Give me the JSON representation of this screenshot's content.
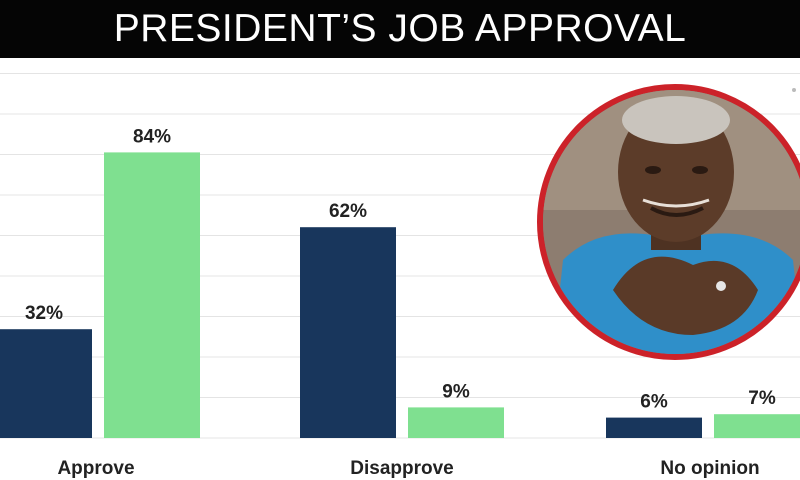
{
  "header": {
    "title": "PRESIDENT’S JOB APPROVAL"
  },
  "colors": {
    "series_dark": "#18365c",
    "series_light": "#7fe090",
    "title_bg": "#050505",
    "portrait_ring": "#cc2229",
    "grid": "#e4e4e4"
  },
  "chart_data": {
    "type": "bar",
    "title": "PRESIDENT’S JOB APPROVAL",
    "categories": [
      "Approve",
      "Disapprove",
      "No opinion"
    ],
    "series": [
      {
        "values": [
          32,
          62,
          6
        ],
        "labels": [
          "32%",
          "62%",
          "6%"
        ]
      },
      {
        "values": [
          84,
          9,
          7
        ],
        "labels": [
          "84%",
          "9%",
          "7%"
        ]
      }
    ],
    "ylim": [
      0,
      100
    ],
    "grid": true,
    "legend": "none"
  },
  "portrait": {
    "subject": "man-in-blue-shirt-portrait"
  }
}
